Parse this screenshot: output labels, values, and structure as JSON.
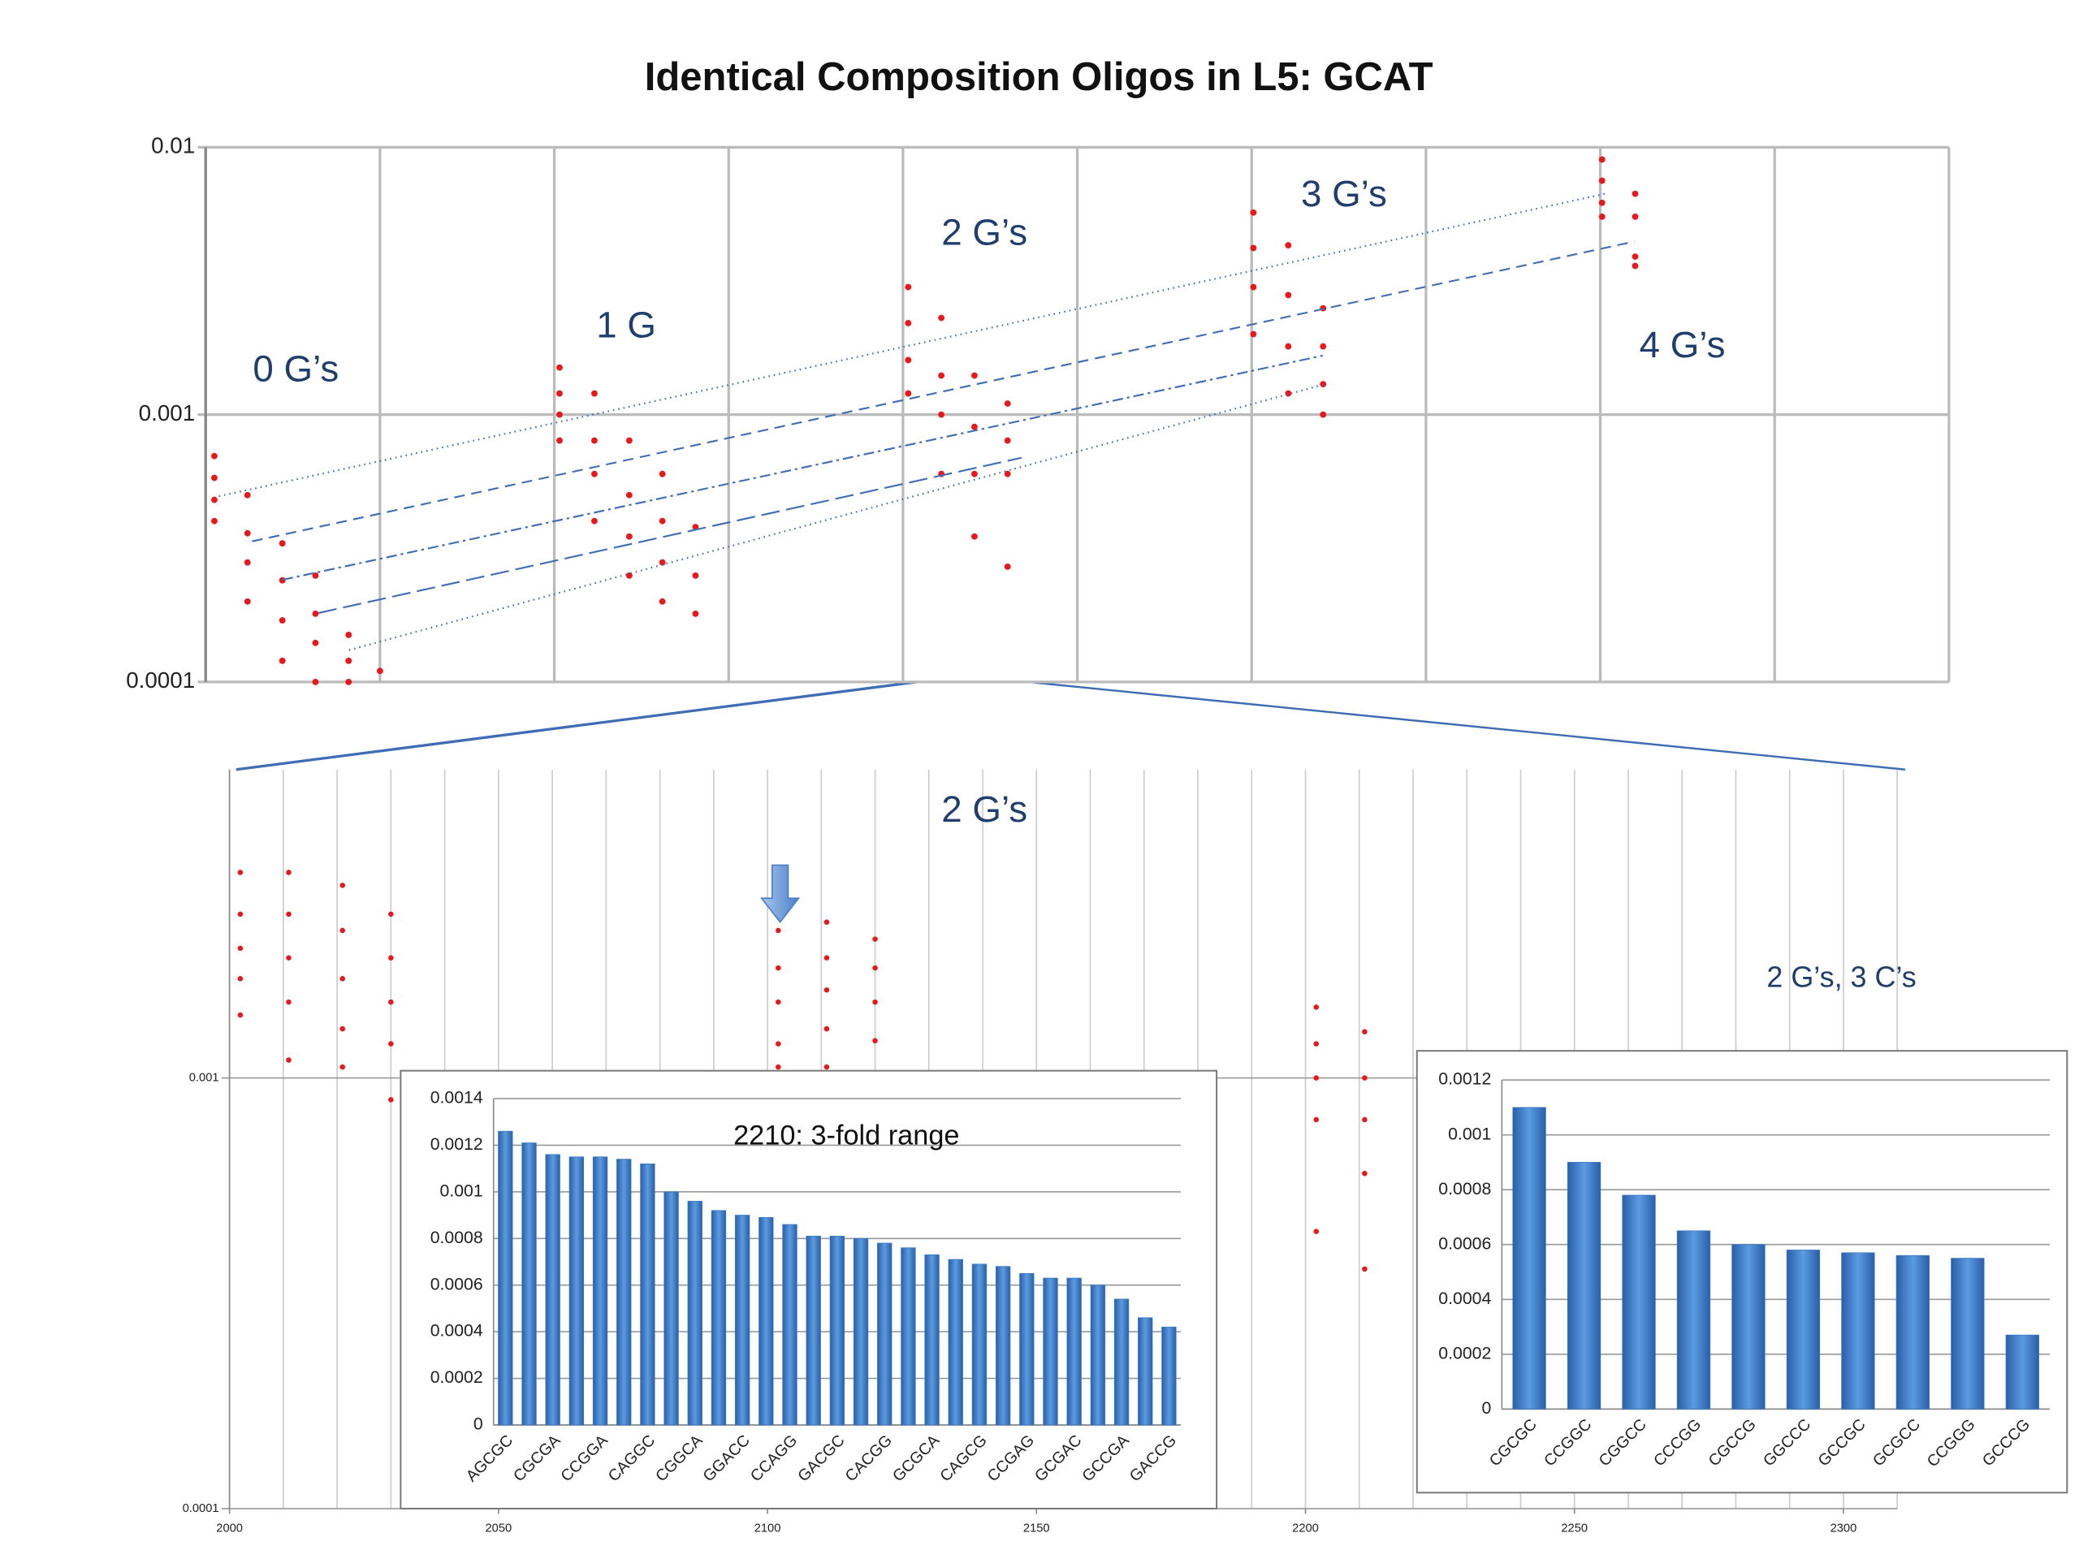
{
  "chart_data": [
    {
      "type": "scatter",
      "title": "Identical Composition Oligos in L5: GCAT",
      "log_y": true,
      "grid": true,
      "color": "#e8191c",
      "xlim": [
        0,
        10
      ],
      "ylim": [
        0.0001,
        0.01
      ],
      "yticks": [
        0.0001,
        0.001,
        0.01
      ],
      "annotations": [
        "0 G’s",
        "1 G",
        "2 G’s",
        "3 G’s",
        "4 G’s"
      ],
      "x": [
        0.05,
        0.05,
        0.05,
        0.05,
        0.24,
        0.24,
        0.24,
        0.24,
        0.44,
        0.44,
        0.44,
        0.44,
        0.63,
        0.63,
        0.63,
        0.63,
        0.82,
        0.82,
        0.82,
        1.0,
        2.03,
        2.03,
        2.03,
        2.03,
        2.23,
        2.23,
        2.23,
        2.23,
        2.43,
        2.43,
        2.43,
        2.43,
        2.62,
        2.62,
        2.62,
        2.62,
        2.81,
        2.81,
        2.81,
        4.03,
        4.03,
        4.03,
        4.03,
        4.22,
        4.22,
        4.22,
        4.22,
        4.41,
        4.41,
        4.41,
        4.41,
        4.6,
        4.6,
        4.6,
        4.6,
        6.01,
        6.01,
        6.01,
        6.01,
        6.21,
        6.21,
        6.21,
        6.21,
        6.41,
        6.41,
        6.41,
        6.41,
        8.01,
        8.01,
        8.01,
        8.01,
        8.2,
        8.2,
        8.2,
        8.2
      ],
      "values": [
        0.0007,
        0.00058,
        0.00048,
        0.0004,
        0.0005,
        0.00036,
        0.00028,
        0.0002,
        0.00033,
        0.00024,
        0.00017,
        0.00012,
        0.00025,
        0.00018,
        0.00014,
        0.0001,
        0.00015,
        0.00012,
        0.0001,
        0.00011,
        0.0015,
        0.0012,
        0.001,
        0.0008,
        0.0012,
        0.0008,
        0.0006,
        0.0004,
        0.0008,
        0.0005,
        0.00035,
        0.00025,
        0.0006,
        0.0004,
        0.00028,
        0.0002,
        0.00038,
        0.00025,
        0.00018,
        0.003,
        0.0022,
        0.0016,
        0.0012,
        0.0023,
        0.0014,
        0.001,
        0.0006,
        0.0014,
        0.0009,
        0.0006,
        0.00035,
        0.0011,
        0.0008,
        0.0006,
        0.00027,
        0.0057,
        0.0042,
        0.003,
        0.002,
        0.0043,
        0.0028,
        0.0018,
        0.0012,
        0.0025,
        0.0018,
        0.0013,
        0.001,
        0.009,
        0.0075,
        0.0062,
        0.0055,
        0.0067,
        0.0055,
        0.0039,
        0.0036
      ]
    },
    {
      "type": "scatter",
      "log_y": true,
      "grid": true,
      "color": "#e8191c",
      "xlim": [
        2000,
        2310
      ],
      "ylim": [
        0.0001,
        0.0052
      ],
      "yticks": [
        0.0001,
        0.001
      ],
      "xticks": [
        2000,
        2050,
        2100,
        2150,
        2200,
        2250,
        2300
      ],
      "annotations": [
        "2 G’s",
        "2 G’s, 3 C’s"
      ],
      "x": [
        2002,
        2002,
        2002,
        2002,
        2002,
        2011,
        2011,
        2011,
        2011,
        2011,
        2021,
        2021,
        2021,
        2021,
        2021,
        2030,
        2030,
        2030,
        2030,
        2030,
        2102,
        2102,
        2102,
        2102,
        2102,
        2111,
        2111,
        2111,
        2111,
        2111,
        2120,
        2120,
        2120,
        2120,
        2202,
        2202,
        2202,
        2202,
        2202,
        2211,
        2211,
        2211,
        2211,
        2211
      ],
      "values": [
        0.003,
        0.0024,
        0.002,
        0.0017,
        0.0014,
        0.003,
        0.0024,
        0.0019,
        0.0015,
        0.0011,
        0.0028,
        0.0022,
        0.0017,
        0.0013,
        0.00106,
        0.0024,
        0.0019,
        0.0015,
        0.0012,
        0.00089,
        0.0022,
        0.0018,
        0.0015,
        0.0012,
        0.00106,
        0.0023,
        0.0019,
        0.0016,
        0.0013,
        0.00106,
        0.0021,
        0.0018,
        0.0015,
        0.00122,
        0.00146,
        0.0012,
        0.001,
        0.0008,
        0.00044,
        0.00128,
        0.001,
        0.0008,
        0.0006,
        0.00036
      ]
    },
    {
      "type": "bar",
      "title": "2210:  3-fold range",
      "color": "#3a78c4",
      "grid": true,
      "ylim": [
        0,
        0.0014
      ],
      "yticks": [
        0,
        0.0002,
        0.0004,
        0.0006,
        0.0008,
        0.001,
        0.0012,
        0.0014
      ],
      "categories": [
        "AGCGC",
        null,
        "CGCGA",
        null,
        "CCGGA",
        null,
        "CAGGC",
        null,
        "CGGCA",
        null,
        "GGACC",
        null,
        "CCAGG",
        null,
        "GACGC",
        null,
        "CACGG",
        null,
        "GCGCA",
        null,
        "CAGCG",
        null,
        "CCGAG",
        null,
        "GCGAC",
        null,
        "GCCGA",
        null,
        "GACCG"
      ],
      "values": [
        0.00126,
        0.00121,
        0.00116,
        0.00115,
        0.00115,
        0.00114,
        0.00112,
        0.001,
        0.00096,
        0.00092,
        0.0009,
        0.00089,
        0.00086,
        0.00081,
        0.00081,
        0.0008,
        0.00078,
        0.00076,
        0.00073,
        0.00071,
        0.00069,
        0.00068,
        0.00065,
        0.00063,
        0.00063,
        0.0006,
        0.00054,
        0.00046,
        0.00042
      ]
    },
    {
      "type": "bar",
      "color": "#3a78c4",
      "grid": true,
      "ylim": [
        0,
        0.0012
      ],
      "yticks": [
        0,
        0.0002,
        0.0004,
        0.0006,
        0.0008,
        0.001,
        0.0012
      ],
      "categories": [
        "CGCGC",
        "CCGGC",
        "CGGCC",
        "CCCGG",
        "CGCCG",
        "GGCCC",
        "GCCGC",
        "GCGCC",
        "CCGGG",
        "GCCCG"
      ],
      "values": [
        0.0011,
        0.0009,
        0.00078,
        0.00065,
        0.0006,
        0.00058,
        0.00057,
        0.00056,
        0.00055,
        0.00027
      ]
    }
  ]
}
